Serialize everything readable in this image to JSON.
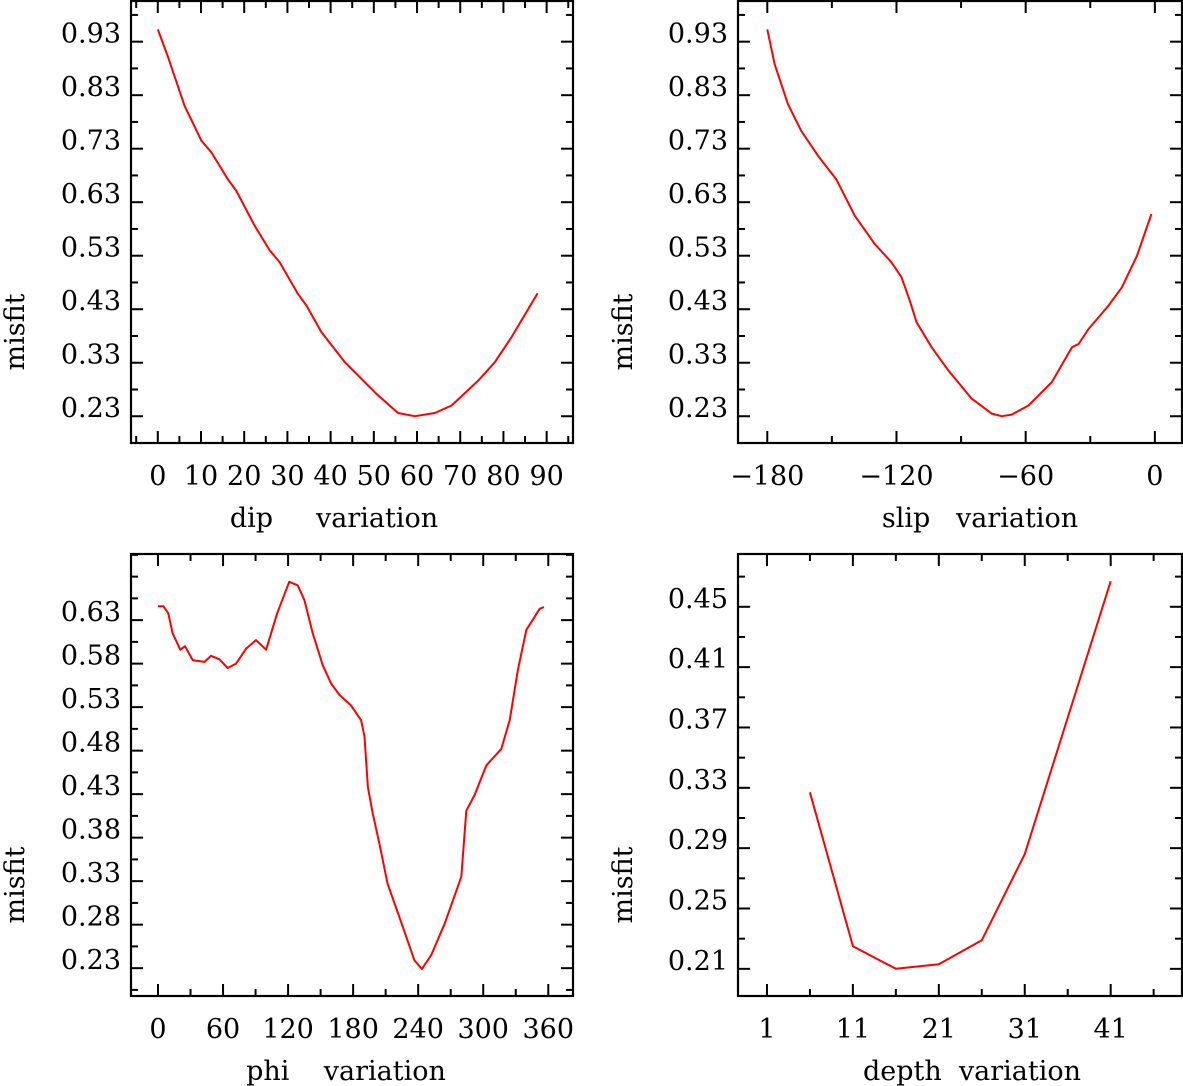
{
  "chart_data": [
    {
      "type": "line",
      "xlabel": "dip     variation",
      "ylabel": "misfit",
      "xlim": [
        -6.2,
        96.1
      ],
      "ylim": [
        0.18,
        1.006
      ],
      "x_ticks": [
        0,
        10,
        20,
        30,
        40,
        50,
        60,
        70,
        80,
        90
      ],
      "x_tick_labels": [
        "0",
        "10",
        "20",
        "30",
        "40",
        "50",
        "60",
        "70",
        "80",
        "90"
      ],
      "x_minor_step": 5,
      "y_ticks": [
        0.23,
        0.33,
        0.43,
        0.53,
        0.63,
        0.73,
        0.83,
        0.93
      ],
      "y_tick_labels": [
        "0.23",
        "0.33",
        "0.43",
        "0.53",
        "0.63",
        "0.73",
        "0.83",
        "0.93"
      ],
      "y_minor_step": 0.05,
      "line_color": "#ff0000",
      "x": [
        0,
        2.3,
        6.2,
        10.1,
        12.4,
        16.2,
        18.2,
        22.4,
        25.9,
        28.2,
        32.4,
        34.4,
        37.9,
        43.3,
        50.6,
        55.6,
        59.5,
        64.1,
        68,
        74.2,
        78,
        81.9,
        87.9
      ],
      "y": [
        0.953,
        0.903,
        0.81,
        0.745,
        0.723,
        0.673,
        0.651,
        0.586,
        0.54,
        0.518,
        0.459,
        0.437,
        0.387,
        0.331,
        0.272,
        0.236,
        0.23,
        0.236,
        0.25,
        0.297,
        0.331,
        0.378,
        0.46
      ]
    },
    {
      "type": "line",
      "xlabel": "slip   variation",
      "ylabel": "misfit",
      "xlim": [
        -193.6,
        12.6
      ],
      "ylim": [
        0.18,
        1.006
      ],
      "x_ticks": [
        -180,
        -120,
        -60,
        0
      ],
      "x_tick_labels": [
        "−180",
        "−120",
        "−60",
        "0"
      ],
      "x_minor_step": 30,
      "y_ticks": [
        0.23,
        0.33,
        0.43,
        0.53,
        0.63,
        0.73,
        0.83,
        0.93
      ],
      "y_tick_labels": [
        "0.23",
        "0.33",
        "0.43",
        "0.53",
        "0.63",
        "0.73",
        "0.83",
        "0.93"
      ],
      "y_minor_step": 0.05,
      "line_color": "#ff0000",
      "x": [
        -180,
        -176.6,
        -170.4,
        -164.2,
        -156.5,
        -148,
        -139.4,
        -130.1,
        -122.4,
        -117.7,
        -113.8,
        -110.7,
        -103.7,
        -96,
        -85.1,
        -75.8,
        -71.1,
        -66.5,
        -58.7,
        -47.8,
        -38.5,
        -35.4,
        -30.8,
        -21.5,
        -15.3,
        -8.3,
        -1.6
      ],
      "y": [
        0.953,
        0.888,
        0.813,
        0.763,
        0.717,
        0.673,
        0.605,
        0.552,
        0.518,
        0.49,
        0.446,
        0.406,
        0.359,
        0.316,
        0.263,
        0.235,
        0.23,
        0.233,
        0.25,
        0.294,
        0.359,
        0.365,
        0.393,
        0.437,
        0.471,
        0.53,
        0.608
      ]
    },
    {
      "type": "line",
      "xlabel": "phi    variation",
      "ylabel": "misfit",
      "xlim": [
        -24.9,
        382.8
      ],
      "ylim": [
        0.198,
        0.706
      ],
      "x_ticks": [
        0,
        60,
        120,
        180,
        240,
        300,
        360
      ],
      "x_tick_labels": [
        "0",
        "60",
        "120",
        "180",
        "240",
        "300",
        "360"
      ],
      "x_minor_step": 30,
      "y_ticks": [
        0.23,
        0.28,
        0.33,
        0.38,
        0.43,
        0.48,
        0.53,
        0.58,
        0.63
      ],
      "y_tick_labels": [
        "0.23",
        "0.28",
        "0.33",
        "0.38",
        "0.43",
        "0.48",
        "0.53",
        "0.58",
        "0.63"
      ],
      "y_minor_step": 0.025,
      "line_color": "#ff0000",
      "x": [
        0,
        5,
        9.4,
        13.5,
        20.6,
        24.9,
        32,
        42.8,
        49,
        56.6,
        64.3,
        72,
        81.2,
        90.4,
        99.7,
        110,
        121,
        128.9,
        135,
        142.7,
        152,
        159.8,
        167.4,
        178,
        187.3,
        190.5,
        193.6,
        198,
        204.2,
        211.8,
        224.2,
        236.5,
        243.4,
        252,
        264.4,
        279.8,
        284.4,
        292,
        302.8,
        316.7,
        324.4,
        332,
        339.8,
        346,
        352,
        356
      ],
      "y": [
        0.646,
        0.646,
        0.638,
        0.615,
        0.596,
        0.6,
        0.584,
        0.582,
        0.589,
        0.585,
        0.575,
        0.58,
        0.597,
        0.607,
        0.596,
        0.638,
        0.674,
        0.67,
        0.653,
        0.615,
        0.578,
        0.557,
        0.544,
        0.532,
        0.515,
        0.496,
        0.438,
        0.408,
        0.373,
        0.327,
        0.283,
        0.239,
        0.229,
        0.245,
        0.281,
        0.335,
        0.411,
        0.429,
        0.463,
        0.482,
        0.515,
        0.573,
        0.619,
        0.631,
        0.643,
        0.645
      ]
    },
    {
      "type": "line",
      "xlabel": "depth  variation",
      "ylabel": "misfit",
      "xlim": [
        -2.37,
        49.3
      ],
      "ylim": [
        0.192,
        0.485
      ],
      "x_ticks": [
        1,
        11,
        21,
        31,
        41
      ],
      "x_tick_labels": [
        "1",
        "11",
        "21",
        "31",
        "41"
      ],
      "x_minor_step": 5,
      "y_ticks": [
        0.21,
        0.25,
        0.29,
        0.33,
        0.37,
        0.41,
        0.45
      ],
      "y_tick_labels": [
        "0.21",
        "0.25",
        "0.29",
        "0.33",
        "0.37",
        "0.41",
        "0.45"
      ],
      "y_minor_step": 0.02,
      "line_color": "#ff0000",
      "x": [
        6,
        11,
        16,
        21,
        26,
        31,
        41
      ],
      "y": [
        0.327,
        0.225,
        0.21,
        0.213,
        0.229,
        0.286,
        0.467
      ]
    }
  ]
}
